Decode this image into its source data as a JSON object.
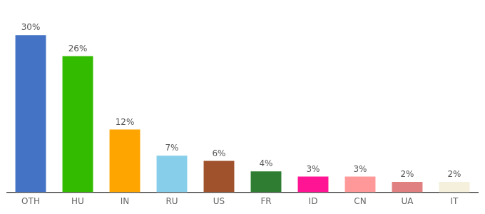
{
  "chart_data": {
    "type": "bar",
    "categories": [
      "OTH",
      "HU",
      "IN",
      "RU",
      "US",
      "FR",
      "ID",
      "CN",
      "UA",
      "IT"
    ],
    "values": [
      30,
      26,
      12,
      7,
      6,
      4,
      3,
      3,
      2,
      2
    ],
    "value_labels": [
      "30%",
      "26%",
      "12%",
      "7%",
      "6%",
      "4%",
      "3%",
      "3%",
      "2%",
      "2%"
    ],
    "colors": [
      "#4472c4",
      "#33bb00",
      "#ffa500",
      "#87ceeb",
      "#a0522d",
      "#2e7d32",
      "#ff1493",
      "#ff9999",
      "#e08080",
      "#f5f0dc"
    ],
    "ylim": [
      0,
      34
    ],
    "data_labels": true,
    "grid": false,
    "tick_labels": "x"
  }
}
